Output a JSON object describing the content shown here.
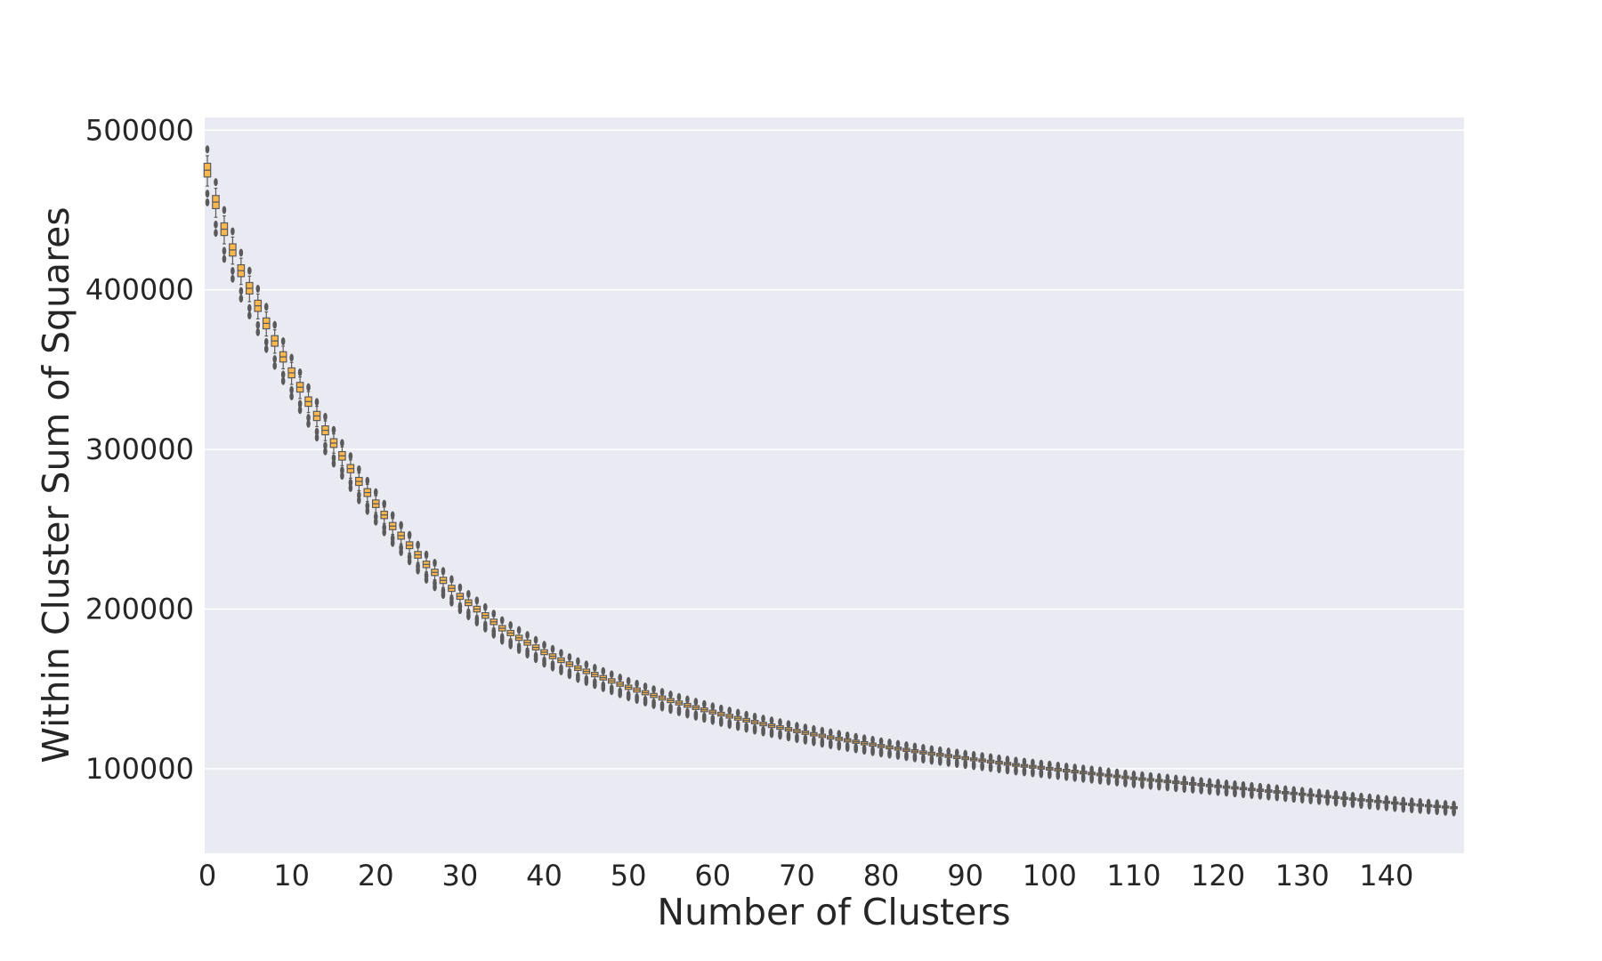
{
  "chart_data": {
    "type": "box",
    "title": "",
    "xlabel": "Number of Clusters",
    "ylabel": "Within Cluster Sum of Squares",
    "x_ticks": [
      0,
      10,
      20,
      30,
      40,
      50,
      60,
      70,
      80,
      90,
      100,
      110,
      120,
      130,
      140
    ],
    "x_range": [
      0,
      149
    ],
    "y_ticks": [
      100000,
      200000,
      300000,
      400000,
      500000
    ],
    "y_range": [
      47000,
      508000
    ],
    "grid": true,
    "box_color": "#ffb84d",
    "line_color": "#5a5a5a",
    "background_color": "#eaeaf2",
    "series": [
      {
        "x": [
          0,
          1,
          2,
          3,
          4,
          5,
          6,
          7,
          8,
          9,
          10,
          11,
          12,
          13,
          14,
          15,
          16,
          17,
          18,
          19,
          20,
          21,
          22,
          23,
          24,
          25,
          26,
          27,
          28,
          29,
          30,
          31,
          32,
          33,
          34,
          35,
          36,
          37,
          38,
          39,
          40,
          41,
          42,
          43,
          44,
          45,
          46,
          47,
          48,
          49,
          50,
          51,
          52,
          53,
          54,
          55,
          56,
          57,
          58,
          59,
          60,
          61,
          62,
          63,
          64,
          65,
          66,
          67,
          68,
          69,
          70,
          71,
          72,
          73,
          74,
          75,
          76,
          77,
          78,
          79,
          80,
          81,
          82,
          83,
          84,
          85,
          86,
          87,
          88,
          89,
          90,
          91,
          92,
          93,
          94,
          95,
          96,
          97,
          98,
          99,
          100,
          101,
          102,
          103,
          104,
          105,
          106,
          107,
          108,
          109,
          110,
          111,
          112,
          113,
          114,
          115,
          116,
          117,
          118,
          119,
          120,
          121,
          122,
          123,
          124,
          125,
          126,
          127,
          128,
          129,
          130,
          131,
          132,
          133,
          134,
          135,
          136,
          137,
          138,
          139,
          140,
          141,
          142,
          143,
          144,
          145,
          146,
          147,
          148
        ],
        "median": [
          475000,
          455000,
          438000,
          425000,
          412000,
          401000,
          390000,
          379000,
          368000,
          358000,
          348000,
          339000,
          330000,
          321000,
          312000,
          304000,
          296000,
          288000,
          280000,
          273000,
          266000,
          259000,
          252000,
          246000,
          240000,
          234000,
          228000,
          223000,
          218000,
          213000,
          208000,
          204000,
          200000,
          196000,
          192000,
          188000,
          185000,
          182000,
          179000,
          176000,
          173000,
          170500,
          168000,
          165500,
          163000,
          161000,
          159000,
          157000,
          155000,
          153000,
          151000,
          149300,
          147600,
          145900,
          144300,
          142700,
          141200,
          139700,
          138300,
          136900,
          135500,
          134200,
          132900,
          131600,
          130400,
          129200,
          128000,
          126900,
          125800,
          124700,
          123600,
          122600,
          121600,
          120600,
          119600,
          118700,
          117800,
          116900,
          116000,
          115100,
          114200,
          113400,
          112600,
          111800,
          111000,
          110200,
          109400,
          108700,
          108000,
          107300,
          106600,
          105900,
          105200,
          104500,
          103800,
          103100,
          102400,
          101800,
          101200,
          100600,
          100000,
          99400,
          98800,
          98200,
          97600,
          97000,
          96400,
          95800,
          95200,
          94600,
          94000,
          93500,
          93000,
          92500,
          92000,
          91500,
          91000,
          90500,
          90000,
          89500,
          89000,
          88500,
          88000,
          87500,
          87000,
          86500,
          86000,
          85500,
          85000,
          84500,
          84000,
          83500,
          83000,
          82500,
          82000,
          81500,
          81000,
          80500,
          80000,
          79500,
          79000,
          78500,
          78000,
          77600,
          77200,
          76800,
          76400,
          76000,
          75600
        ]
      }
    ]
  }
}
